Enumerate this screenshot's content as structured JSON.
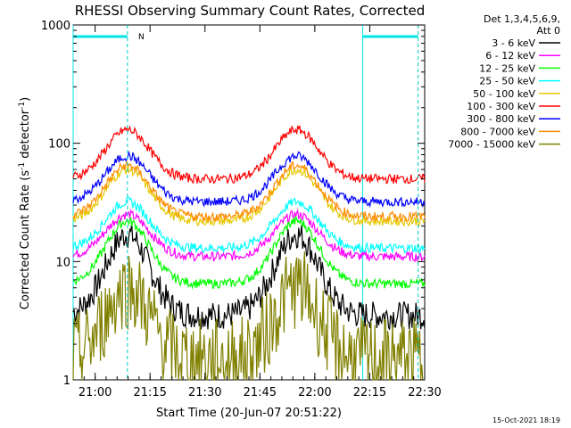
{
  "chart_data": {
    "type": "line",
    "title": "RHESSI Observing Summary Count Rates, Corrected",
    "xlabel": "Start Time (20-Jun-07 20:51:22)",
    "ylabel": "Corrected Count Rate (s",
    "ylabel_sup1": "-1",
    "ylabel_mid": " detector",
    "ylabel_sup2": "-1",
    "ylabel_end": ")",
    "y_scale": "log",
    "ylim": [
      1,
      1000
    ],
    "xlim_minutes": [
      20.9,
      22.5
    ],
    "x_tick_labels": [
      "21:00",
      "21:15",
      "21:30",
      "21:45",
      "22:00",
      "22:15",
      "22:30"
    ],
    "x_tick_values": [
      21.0,
      21.25,
      21.5,
      21.75,
      22.0,
      22.25,
      22.5
    ],
    "y_tick_labels": [
      "1",
      "10",
      "100",
      "1000"
    ],
    "y_tick_values": [
      1,
      10,
      100,
      1000
    ],
    "legend_header_1": "Det 1,3,4,5,6,9,",
    "legend_header_2": "Att 0",
    "flag_label": "N",
    "footer_date": "15-Oct-2021 18:19",
    "legend_placement": "right",
    "night_intervals": [
      [
        20.9,
        21.147
      ],
      [
        22.218,
        22.47
      ]
    ],
    "dashed_markers": [
      21.147,
      22.47
    ],
    "series": [
      {
        "name": "3 - 6 keV",
        "color": "#000000",
        "base": 3.5,
        "peak": 17
      },
      {
        "name": "6 - 12 keV",
        "color": "#ff00ff",
        "base": 11,
        "peak": 25
      },
      {
        "name": "12 - 25 keV",
        "color": "#00ff00",
        "base": 6.5,
        "peak": 22
      },
      {
        "name": "25 - 50 keV",
        "color": "#00ffff",
        "base": 13,
        "peak": 32
      },
      {
        "name": "50 - 100 keV",
        "color": "#e6c800",
        "base": 22,
        "peak": 60
      },
      {
        "name": "100 - 300 keV",
        "color": "#ff0000",
        "base": 50,
        "peak": 130
      },
      {
        "name": "300 - 800 keV",
        "color": "#0000ff",
        "base": 32,
        "peak": 78
      },
      {
        "name": "800 - 7000 keV",
        "color": "#ff8c00",
        "base": 24,
        "peak": 65
      },
      {
        "name": "7000 - 15000 keV",
        "color": "#808000",
        "base": 1.5,
        "peak": 6
      }
    ],
    "peak_times": [
      21.147,
      21.917
    ]
  }
}
